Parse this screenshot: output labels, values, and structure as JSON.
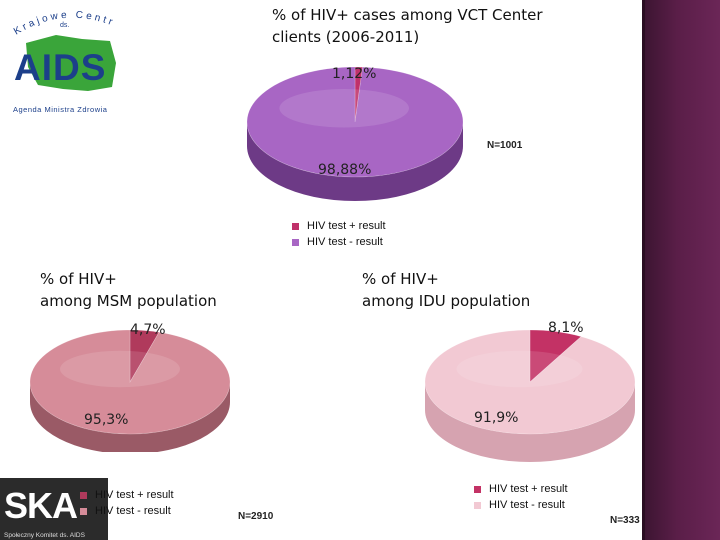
{
  "colors": {
    "vct_pos": "#c0316a",
    "vct_neg": "#a866c4",
    "vct_neg_side": "#6d3a86",
    "vct_pos_side": "#7e1f47",
    "msm_pos": "#b03a5c",
    "msm_neg": "#d68c99",
    "msm_neg_side": "#9a5a66",
    "msm_pos_side": "#7a2339",
    "idu_pos": "#c33265",
    "idu_neg": "#f2c9d3",
    "idu_neg_side": "#d6a3b0",
    "idu_pos_side": "#862044",
    "sidebar": "#5a1e48"
  },
  "logos": {
    "aids_logo": {
      "arc_text": "Krajowe Centrum",
      "small": "ds.",
      "main": "AIDS",
      "caption": "Agenda Ministra Zdrowia"
    },
    "ska_logo": {
      "main": "SKA",
      "caption": "Społeczny Komitet ds. AIDS"
    }
  },
  "chart_data": [
    {
      "type": "pie",
      "title": "% of HIV+ cases among VCT Center clients (2006-2011)",
      "title_lines": [
        "% of HIV+ cases among VCT Center",
        "clients (2006-2011)"
      ],
      "slices": [
        {
          "label": "HIV test + result",
          "value": 1.12,
          "display": "1,12%"
        },
        {
          "label": "HIV test - result",
          "value": 98.88,
          "display": "98,88%"
        }
      ],
      "legend": [
        "HIV test + result",
        "HIV test - result"
      ],
      "n_label": "N=1001"
    },
    {
      "type": "pie",
      "title": "% of HIV+ among MSM population",
      "title_lines": [
        "% of HIV+",
        "among MSM population"
      ],
      "slices": [
        {
          "label": "HIV test + result",
          "value": 4.7,
          "display": "4,7%"
        },
        {
          "label": "HIV test - result",
          "value": 95.3,
          "display": "95,3%"
        }
      ],
      "legend": [
        "HIV test + result",
        "HIV test - result"
      ],
      "n_label": "N=2910"
    },
    {
      "type": "pie",
      "title": "% of HIV+ among IDU population",
      "title_lines": [
        "% of HIV+",
        "among IDU population"
      ],
      "slices": [
        {
          "label": "HIV test + result",
          "value": 8.1,
          "display": "8,1%"
        },
        {
          "label": "HIV test - result",
          "value": 91.9,
          "display": "91,9%"
        }
      ],
      "legend": [
        "HIV test + result",
        "HIV test - result"
      ],
      "n_label": "N=333"
    }
  ]
}
